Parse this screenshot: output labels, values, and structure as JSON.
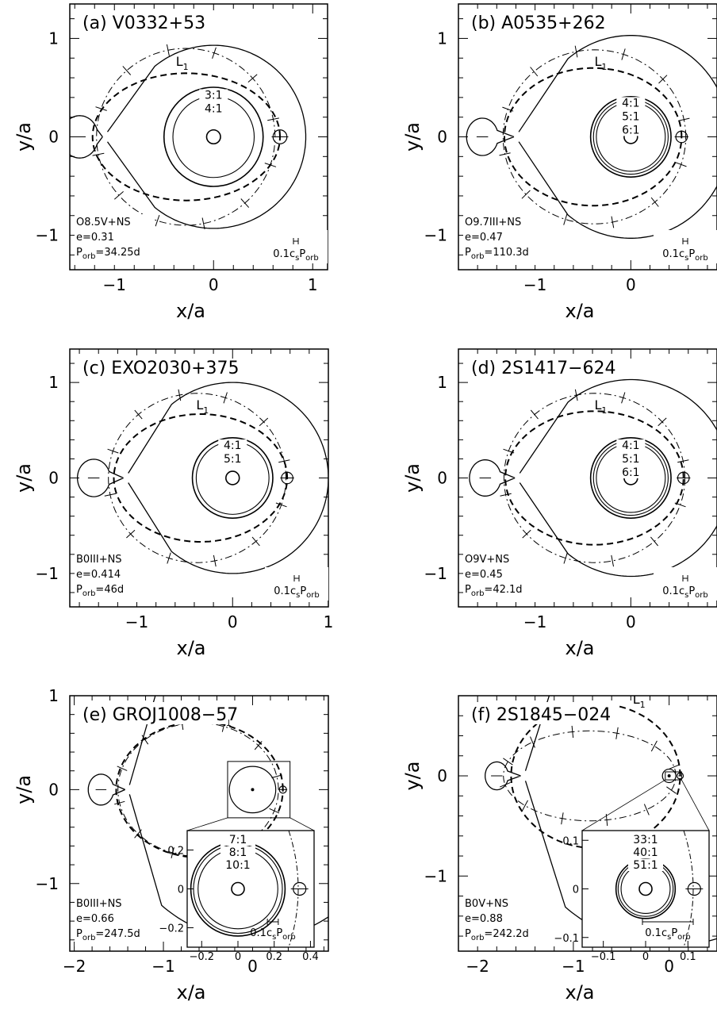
{
  "chart_data": [
    {
      "type": "line",
      "panel": "a",
      "title": "(a) V0332+53",
      "xlabel": "x/a",
      "ylabel": "y/a",
      "xlim": [
        -1.45,
        1.15
      ],
      "ylim": [
        -1.35,
        1.35
      ],
      "xticks": [
        -1,
        0,
        1
      ],
      "xtick_labels": [
        "−1",
        "0",
        "1"
      ],
      "yticks": [
        -1,
        0,
        1
      ],
      "ytick_labels": [
        "−1",
        "0",
        "1"
      ],
      "system": "O8.5V+NS",
      "ecc_label": "e=0.31",
      "period_label": "P",
      "period_sub": "orb",
      "period_value": "=34.25d",
      "e": 0.31,
      "bar_label": "0.1c",
      "bar_sub1": "s",
      "bar_mid": "P",
      "bar_sub2": "orb",
      "bar_length": 0.04,
      "l1_label": "L",
      "l1_sub": "1",
      "resonances": [
        "3:1",
        "4:1"
      ],
      "resonance_radii": [
        0.5,
        0.41
      ],
      "star_x": -1.35,
      "star_lobe": 0.34,
      "l1_x": -1.12,
      "ns_x": 0.67,
      "ns_lobe": 0.07,
      "outer_radius": 0.93,
      "orbit_focus": -0.33,
      "orbit_a": 1.0,
      "disk_radius": 0.85,
      "inset": null
    },
    {
      "type": "line",
      "panel": "b",
      "title": "(b) A0535+262",
      "xlabel": "x/a",
      "ylabel": "y/a",
      "xlim": [
        -1.8,
        0.9
      ],
      "ylim": [
        -1.35,
        1.35
      ],
      "xticks": [
        -1,
        0
      ],
      "xtick_labels": [
        "−1",
        "0"
      ],
      "yticks": [
        -1,
        0,
        1
      ],
      "ytick_labels": [
        "−1",
        "0",
        "1"
      ],
      "system": "O9.7III+NS",
      "ecc_label": "e=0.47",
      "period_label": "P",
      "period_sub": "orb",
      "period_value": "=110.3d",
      "e": 0.47,
      "bar_label": "0.1c",
      "bar_sub1": "s",
      "bar_mid": "P",
      "bar_sub2": "orb",
      "bar_length": 0.04,
      "l1_label": "L",
      "l1_sub": "1",
      "resonances": [
        "4:1",
        "5:1",
        "6:1"
      ],
      "resonance_radii": [
        0.42,
        0.39,
        0.36
      ],
      "star_x": -1.55,
      "star_lobe": 0.3,
      "l1_x": -1.22,
      "ns_x": 0.53,
      "ns_lobe": 0.06,
      "outer_radius": 1.03,
      "orbit_focus": -0.43,
      "orbit_a": 1.06,
      "disk_radius": 0.92,
      "inset": null
    },
    {
      "type": "line",
      "panel": "c",
      "title": "(c) EXO2030+375",
      "xlabel": "x/a",
      "ylabel": "y/a",
      "xlim": [
        -1.7,
        1.0
      ],
      "ylim": [
        -1.35,
        1.35
      ],
      "xticks": [
        -1,
        0,
        1
      ],
      "xtick_labels": [
        "−1",
        "0",
        "1"
      ],
      "yticks": [
        -1,
        0,
        1
      ],
      "ytick_labels": [
        "−1",
        "0",
        "1"
      ],
      "system": "B0III+NS",
      "ecc_label": "e=0.414",
      "period_label": "P",
      "period_sub": "orb",
      "period_value": "=46d",
      "e": 0.414,
      "bar_label": "0.1c",
      "bar_sub1": "s",
      "bar_mid": "P",
      "bar_sub2": "orb",
      "bar_length": 0.04,
      "l1_label": "L",
      "l1_sub": "1",
      "resonances": [
        "4:1",
        "5:1"
      ],
      "resonance_radii": [
        0.42,
        0.38
      ],
      "star_x": -1.45,
      "star_lobe": 0.31,
      "l1_x": -1.14,
      "ns_x": 0.57,
      "ns_lobe": 0.06,
      "outer_radius": 1.0,
      "orbit_focus": -0.42,
      "orbit_a": 1.03,
      "disk_radius": 0.88,
      "inset": null
    },
    {
      "type": "line",
      "panel": "d",
      "title": "(d) 2S1417−624",
      "xlabel": "x/a",
      "ylabel": "y/a",
      "xlim": [
        -1.8,
        0.9
      ],
      "ylim": [
        -1.35,
        1.35
      ],
      "xticks": [
        -1,
        0
      ],
      "xtick_labels": [
        "−1",
        "0"
      ],
      "yticks": [
        -1,
        0,
        1
      ],
      "ytick_labels": [
        "−1",
        "0",
        "1"
      ],
      "system": "O9V+NS",
      "ecc_label": "e=0.45",
      "period_label": "P",
      "period_sub": "orb",
      "period_value": "=42.1d",
      "e": 0.45,
      "bar_label": "0.1c",
      "bar_sub1": "s",
      "bar_mid": "P",
      "bar_sub2": "orb",
      "bar_length": 0.04,
      "l1_label": "L",
      "l1_sub": "1",
      "resonances": [
        "4:1",
        "5:1",
        "6:1"
      ],
      "resonance_radii": [
        0.42,
        0.39,
        0.36
      ],
      "star_x": -1.52,
      "star_lobe": 0.3,
      "l1_x": -1.21,
      "ns_x": 0.55,
      "ns_lobe": 0.06,
      "outer_radius": 1.03,
      "orbit_focus": -0.43,
      "orbit_a": 1.05,
      "disk_radius": 0.92,
      "inset": null
    },
    {
      "type": "line",
      "panel": "e",
      "title": "(e) GROJ1008−57",
      "xlabel": "x/a",
      "ylabel": "y/a",
      "xlim": [
        -2.05,
        0.85
      ],
      "ylim": [
        -1.72,
        1.0
      ],
      "xticks": [
        -2,
        -1,
        0
      ],
      "xtick_labels": [
        "−2",
        "−1",
        "0"
      ],
      "yticks": [
        -1,
        0,
        1
      ],
      "ytick_labels": [
        "−1",
        "0",
        "1"
      ],
      "system": "B0III+NS",
      "ecc_label": "e=0.66",
      "period_label": "P",
      "period_sub": "orb",
      "period_value": "=247.5d",
      "e": 0.66,
      "bar_label": "0.1c",
      "bar_sub1": "s",
      "bar_mid": "P",
      "bar_sub2": "orb",
      "bar_length": 0.06,
      "l1_label": "L",
      "l1_sub": "1",
      "resonances": [
        "7:1",
        "8:1",
        "10:1"
      ],
      "resonance_radii": [
        0.26,
        0.245,
        0.22
      ],
      "star_x": -1.7,
      "star_lobe": 0.26,
      "l1_x": -1.43,
      "ns_x": 0.34,
      "ns_lobe": 0.04,
      "outer_radius": 1.6,
      "orbit_focus": -0.66,
      "orbit_a": 1.0,
      "disk_radius": 0.95,
      "inset": {
        "xlim": [
          -0.28,
          0.42
        ],
        "ylim": [
          -0.3,
          0.3
        ],
        "xticks": [
          -0.2,
          0,
          0.2,
          0.4
        ],
        "xtick_labels": [
          "−0.2",
          "0",
          "0.2",
          "0.4"
        ],
        "yticks": [
          -0.2,
          0,
          0.2
        ],
        "ytick_labels": [
          "−0.2",
          "0",
          "0.2"
        ],
        "box": [
          -0.28,
          -0.3,
          0.42,
          0.3
        ]
      }
    },
    {
      "type": "line",
      "panel": "f",
      "title": "(f) 2S1845−024",
      "xlabel": "x/a",
      "ylabel": "y/a",
      "xlim": [
        -2.2,
        0.5
      ],
      "ylim": [
        -1.75,
        0.8
      ],
      "xticks": [
        -2,
        -1,
        0
      ],
      "xtick_labels": [
        "−2",
        "−1",
        "0"
      ],
      "yticks": [
        -1,
        0
      ],
      "ytick_labels": [
        "−1",
        "0"
      ],
      "system": "B0V+NS",
      "ecc_label": "e=0.88",
      "period_label": "P",
      "period_sub": "orb",
      "period_value": "=242.2d",
      "e": 0.88,
      "bar_label": "0.1c",
      "bar_sub1": "s",
      "bar_mid": "P",
      "bar_sub2": "orb",
      "bar_length": 0.12,
      "l1_label": "L",
      "l1_sub": "1",
      "resonances": [
        "33:1",
        "40:1",
        "51:1"
      ],
      "resonance_radii": [
        0.07,
        0.065,
        0.058
      ],
      "star_x": -1.8,
      "star_lobe": 0.22,
      "l1_x": -1.55,
      "ns_x": 0.115,
      "ns_lobe": 0.015,
      "outer_radius": 1.7,
      "orbit_focus": -0.88,
      "orbit_a": 1.0,
      "disk_radius": 0.95,
      "inset": {
        "xlim": [
          -0.15,
          0.15
        ],
        "ylim": [
          -0.12,
          0.12
        ],
        "xticks": [
          -0.1,
          0,
          0.1
        ],
        "xtick_labels": [
          "−0.1",
          "0",
          "0.1"
        ],
        "yticks": [
          -0.1,
          0,
          0.1
        ],
        "ytick_labels": [
          "−0.1",
          "0",
          "0.1"
        ],
        "box": [
          -0.04,
          -0.04,
          0.13,
          0.04
        ]
      }
    }
  ]
}
